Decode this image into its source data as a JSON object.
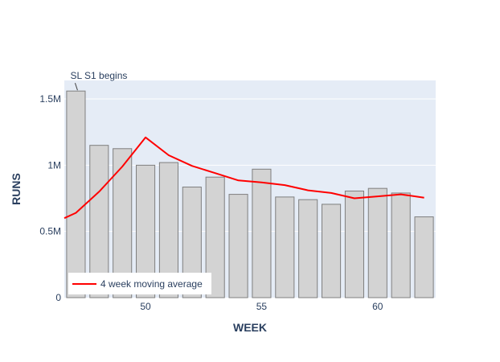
{
  "chart_data": {
    "type": "bar",
    "title": "",
    "xlabel": "WEEK",
    "ylabel": "RUNS",
    "xlim": [
      46.5,
      62.5
    ],
    "ylim": [
      0,
      1640000
    ],
    "x_ticks": [
      50,
      55,
      60
    ],
    "x_tick_labels": [
      "50",
      "55",
      "60"
    ],
    "y_ticks": [
      0,
      500000,
      1000000,
      1500000
    ],
    "y_tick_labels": [
      "0",
      "0.5M",
      "1M",
      "1.5M"
    ],
    "grid": true,
    "bar_series": {
      "name": "Runs",
      "x": [
        47,
        48,
        49,
        50,
        51,
        52,
        53,
        54,
        55,
        56,
        57,
        58,
        59,
        60,
        61,
        62
      ],
      "values": [
        1560000,
        1150000,
        1125000,
        1000000,
        1020000,
        835000,
        910000,
        780000,
        970000,
        760000,
        740000,
        705000,
        805000,
        825000,
        790000,
        610000
      ],
      "color": "#d3d3d3",
      "edge_color": "#7f7f7f"
    },
    "line_series": {
      "name": "4 week moving average",
      "x": [
        46.5,
        47,
        48,
        49,
        50,
        51,
        52,
        53,
        54,
        55,
        56,
        57,
        58,
        59,
        60,
        61,
        62
      ],
      "values": [
        600000,
        640000,
        800000,
        990000,
        1210000,
        1075000,
        995000,
        940000,
        885000,
        870000,
        850000,
        810000,
        790000,
        750000,
        765000,
        780000,
        755000
      ],
      "color": "#ff0000"
    },
    "legend": {
      "position": "bottom-left",
      "entries": [
        "4 week moving average"
      ]
    },
    "annotations": [
      {
        "text": "SL S1 begins",
        "x": 47,
        "y": 1560000
      }
    ],
    "plot_bgcolor": "#e5ecf6",
    "grid_color": "#ffffff",
    "text_color": "#2a3f5f"
  }
}
